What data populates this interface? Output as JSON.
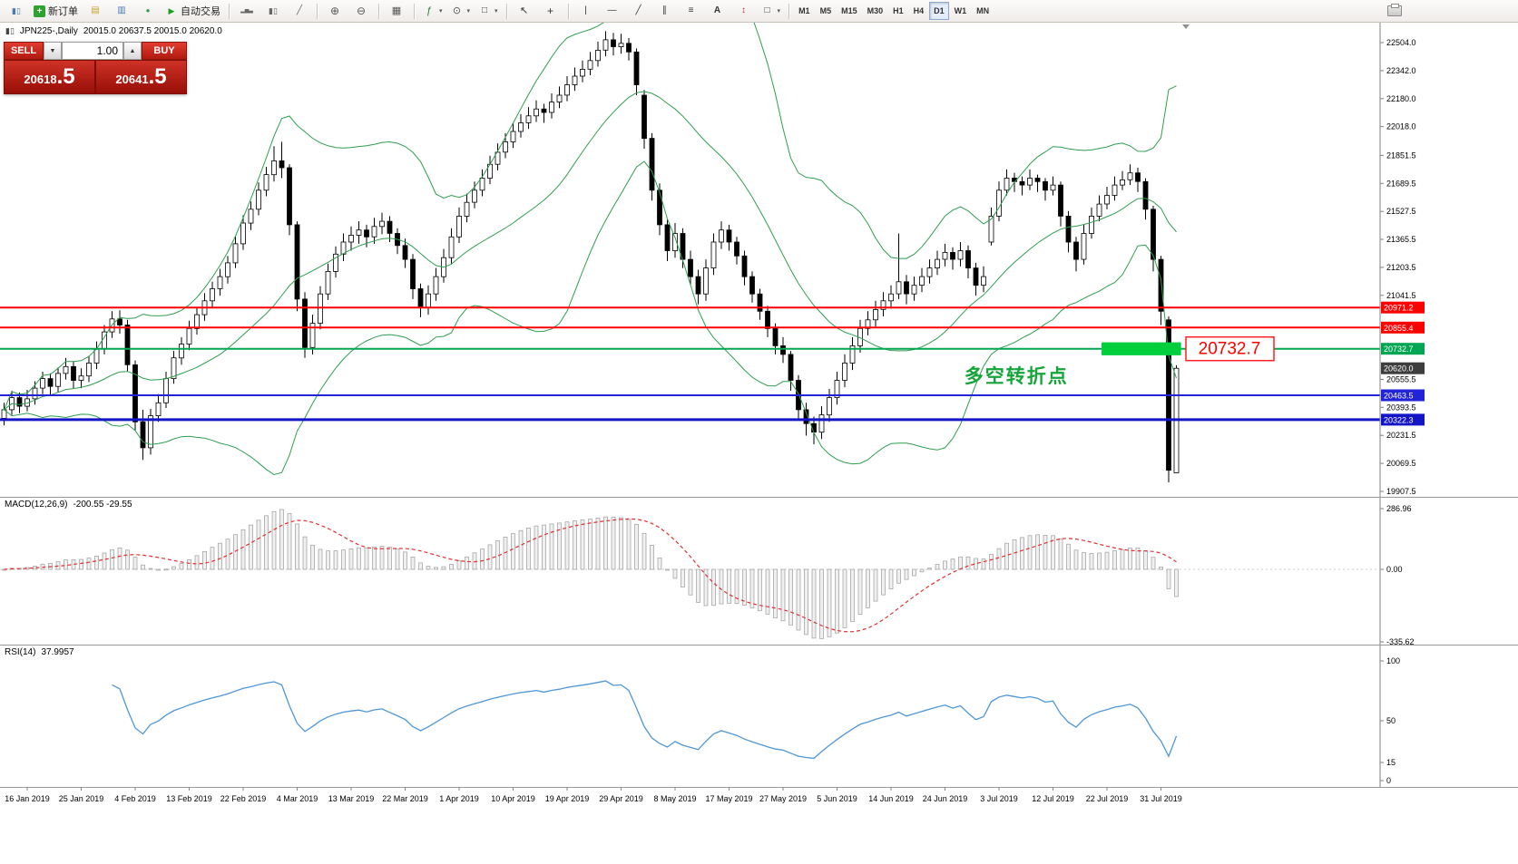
{
  "toolbar": {
    "groups": [
      {
        "items": [
          {
            "name": "chart-menu",
            "icon": "chart-mini"
          },
          {
            "name": "new-order",
            "icon": "order-plus",
            "label": "新订单"
          },
          {
            "name": "market-watch",
            "icon": "gold"
          },
          {
            "name": "data-window",
            "icon": "blue-win"
          },
          {
            "name": "navigator",
            "icon": "green-nav"
          },
          {
            "name": "auto-trading",
            "icon": "play",
            "label": "自动交易"
          }
        ]
      },
      {
        "items": [
          {
            "name": "bar-chart-type",
            "icon": "bars"
          },
          {
            "name": "candle-chart-type",
            "icon": "candles"
          },
          {
            "name": "line-chart-type",
            "icon": "linechart"
          }
        ]
      },
      {
        "items": [
          {
            "name": "zoom-in",
            "icon": "zoom-in"
          },
          {
            "name": "zoom-out",
            "icon": "zoom-out"
          }
        ]
      },
      {
        "items": [
          {
            "name": "tile-windows",
            "icon": "tile"
          }
        ]
      },
      {
        "items": [
          {
            "name": "indicators",
            "icon": "indicators",
            "dropdown": true
          },
          {
            "name": "periods",
            "icon": "clock",
            "dropdown": true
          },
          {
            "name": "templates",
            "icon": "shapes",
            "dropdown": true
          }
        ]
      },
      {
        "items": [
          {
            "name": "cursor-tool",
            "icon": "cursor"
          },
          {
            "name": "crosshair-tool",
            "icon": "crosshair"
          }
        ]
      },
      {
        "items": [
          {
            "name": "vertical-line-tool",
            "icon": "vline"
          },
          {
            "name": "horizontal-line-tool",
            "icon": "hline"
          },
          {
            "name": "trendline-tool",
            "icon": "trend"
          },
          {
            "name": "channel-tool",
            "icon": "channel"
          },
          {
            "name": "fibonacci-tool",
            "icon": "fibo"
          },
          {
            "name": "text-tool",
            "icon": "text"
          },
          {
            "name": "arrows-tool",
            "icon": "arrows"
          },
          {
            "name": "shapes-tool",
            "icon": "shapes",
            "dropdown": true
          }
        ]
      },
      {
        "timeframes": true,
        "items": [
          {
            "name": "tf-m1",
            "label": "M1"
          },
          {
            "name": "tf-m5",
            "label": "M5"
          },
          {
            "name": "tf-m15",
            "label": "M15"
          },
          {
            "name": "tf-m30",
            "label": "M30"
          },
          {
            "name": "tf-h1",
            "label": "H1"
          },
          {
            "name": "tf-h4",
            "label": "H4"
          },
          {
            "name": "tf-d1",
            "label": "D1",
            "active": true
          },
          {
            "name": "tf-w1",
            "label": "W1"
          },
          {
            "name": "tf-mn",
            "label": "MN"
          }
        ]
      },
      {
        "align": "right",
        "items": [
          {
            "name": "print",
            "icon": "printer"
          }
        ]
      }
    ]
  },
  "symbol_header": {
    "symbol": "JPN225-,Daily",
    "ohlc": "20015.0 20637.5 20015.0 20620.0"
  },
  "trade_panel": {
    "sell_label": "SELL",
    "buy_label": "BUY",
    "volume": "1.00",
    "sell_price_small": "20618",
    "sell_price_big": ".5",
    "buy_price_small": "20641",
    "buy_price_big": ".5"
  },
  "panes": {
    "macd": {
      "name": "MACD(12,26,9)",
      "values": "-200.55 -29.55",
      "axis": [
        "286.96",
        "0.00",
        "-335.62"
      ]
    },
    "rsi": {
      "name": "RSI(14)",
      "value": "37.9957",
      "axis": [
        "100",
        "50",
        "15",
        "0"
      ]
    }
  },
  "chart_data": {
    "type": "candlestick",
    "symbol": "JPN225-",
    "timeframe": "Daily",
    "ohlc_display": {
      "open": 20015.0,
      "high": 20637.5,
      "low": 20015.0,
      "close": 20620.0
    },
    "indicators": {
      "bollinger": {
        "period": 20,
        "deviation": 2,
        "color": "#2f9e4e"
      },
      "macd": {
        "fast": 12,
        "slow": 26,
        "signal": 9,
        "last_values": [
          -200.55,
          -29.55
        ],
        "hist_fill": "#f0f0f0",
        "hist_stroke": "#9c9c9c",
        "signal_color": "#e03030"
      },
      "rsi": {
        "period": 14,
        "last_value": 37.9957,
        "color": "#4f97d7"
      }
    },
    "price_axis_ticks": [
      "22504.0",
      "22342.0",
      "22180.0",
      "22018.0",
      "21851.5",
      "21689.5",
      "21527.5",
      "21365.5",
      "21203.5",
      "21041.5",
      "20555.5",
      "20393.5",
      "20231.5",
      "20069.5",
      "19907.5"
    ],
    "levels": [
      {
        "price": 20971.2,
        "label": "20971.2",
        "color": "#ff0000",
        "width": 2
      },
      {
        "price": 20855.4,
        "label": "20855.4",
        "color": "#ff0000",
        "width": 2
      },
      {
        "price": 20732.7,
        "label": "20732.7",
        "color": "#00a651",
        "width": 2
      },
      {
        "price": 20463.5,
        "label": "20463.5",
        "color": "#2222d8",
        "width": 2
      },
      {
        "price": 20322.3,
        "label": "20322.3",
        "color": "#1515c8",
        "width": 3
      }
    ],
    "current_price": {
      "price": 20620.0,
      "label": "20620.0",
      "tag_color": "#3d3d3d"
    },
    "highlight_rect": {
      "from_candle": 142.3,
      "to_candle": 152.6,
      "price_top": 20770,
      "price_bottom": 20695,
      "color": "#00ce3c"
    },
    "price_label": {
      "text": "20732.7",
      "price": 20732.7,
      "text_color": "#ff0000",
      "border_color": "#ff2020"
    },
    "annotation": {
      "text": "多空转折点",
      "x_candle": 124.5,
      "price": 20537,
      "color": "#16a53a"
    },
    "time_axis": {
      "labels": [
        "16 Jan 2019",
        "25 Jan 2019",
        "4 Feb 2019",
        "13 Feb 2019",
        "22 Feb 2019",
        "4 Mar 2019",
        "13 Mar 2019",
        "22 Mar 2019",
        "1 Apr 2019",
        "10 Apr 2019",
        "19 Apr 2019",
        "29 Apr 2019",
        "8 May 2019",
        "17 May 2019",
        "27 May 2019",
        "5 Jun 2019",
        "14 Jun 2019",
        "24 Jun 2019",
        "3 Jul 2019",
        "12 Jul 2019",
        "22 Jul 2019",
        "31 Jul 2019"
      ],
      "indices": [
        3,
        10,
        17,
        24,
        31,
        38,
        45,
        52,
        59,
        66,
        73,
        80,
        87,
        94,
        101,
        108,
        115,
        122,
        129,
        136,
        143,
        150
      ]
    },
    "candles": [
      [
        20330,
        20420,
        20290,
        20380
      ],
      [
        20380,
        20490,
        20350,
        20450
      ],
      [
        20450,
        20480,
        20360,
        20400
      ],
      [
        20400,
        20495,
        20370,
        20443
      ],
      [
        20443,
        20545,
        20410,
        20505
      ],
      [
        20505,
        20600,
        20470,
        20560
      ],
      [
        20560,
        20590,
        20465,
        20515
      ],
      [
        20515,
        20625,
        20480,
        20590
      ],
      [
        20590,
        20680,
        20555,
        20630
      ],
      [
        20630,
        20660,
        20500,
        20550
      ],
      [
        20550,
        20620,
        20505,
        20575
      ],
      [
        20575,
        20690,
        20540,
        20650
      ],
      [
        20650,
        20775,
        20615,
        20730
      ],
      [
        20730,
        20870,
        20700,
        20830
      ],
      [
        20830,
        20950,
        20795,
        20905
      ],
      [
        20905,
        20955,
        20820,
        20870
      ],
      [
        20870,
        20900,
        20600,
        20640
      ],
      [
        20640,
        20665,
        20260,
        20310
      ],
      [
        20310,
        20380,
        20090,
        20160
      ],
      [
        20160,
        20385,
        20120,
        20345
      ],
      [
        20345,
        20470,
        20310,
        20420
      ],
      [
        20420,
        20600,
        20390,
        20560
      ],
      [
        20560,
        20720,
        20530,
        20680
      ],
      [
        20680,
        20800,
        20640,
        20760
      ],
      [
        20760,
        20895,
        20725,
        20850
      ],
      [
        20850,
        20975,
        20815,
        20930
      ],
      [
        20930,
        21055,
        20895,
        21010
      ],
      [
        21010,
        21120,
        20970,
        21080
      ],
      [
        21080,
        21195,
        21040,
        21150
      ],
      [
        21150,
        21270,
        21110,
        21230
      ],
      [
        21230,
        21385,
        21200,
        21340
      ],
      [
        21340,
        21505,
        21305,
        21460
      ],
      [
        21460,
        21585,
        21420,
        21540
      ],
      [
        21540,
        21695,
        21505,
        21650
      ],
      [
        21650,
        21785,
        21615,
        21740
      ],
      [
        21740,
        21905,
        21700,
        21820
      ],
      [
        21820,
        21930,
        21720,
        21780
      ],
      [
        21780,
        21800,
        21390,
        21450
      ],
      [
        21450,
        21470,
        20950,
        21020
      ],
      [
        21020,
        21060,
        20680,
        20740
      ],
      [
        20740,
        20930,
        20700,
        20880
      ],
      [
        20880,
        21095,
        20845,
        21050
      ],
      [
        21050,
        21225,
        21015,
        21180
      ],
      [
        21180,
        21325,
        21145,
        21280
      ],
      [
        21280,
        21400,
        21240,
        21350
      ],
      [
        21350,
        21440,
        21300,
        21390
      ],
      [
        21390,
        21470,
        21340,
        21420
      ],
      [
        21420,
        21450,
        21320,
        21380
      ],
      [
        21380,
        21490,
        21340,
        21440
      ],
      [
        21440,
        21520,
        21395,
        21470
      ],
      [
        21470,
        21500,
        21350,
        21400
      ],
      [
        21400,
        21430,
        21280,
        21330
      ],
      [
        21330,
        21370,
        21200,
        21250
      ],
      [
        21250,
        21280,
        21020,
        21080
      ],
      [
        21080,
        21110,
        20915,
        20970
      ],
      [
        20970,
        21100,
        20930,
        21050
      ],
      [
        21050,
        21200,
        21010,
        21150
      ],
      [
        21150,
        21310,
        21115,
        21260
      ],
      [
        21260,
        21430,
        21225,
        21380
      ],
      [
        21380,
        21550,
        21345,
        21500
      ],
      [
        21500,
        21630,
        21465,
        21580
      ],
      [
        21580,
        21700,
        21545,
        21650
      ],
      [
        21650,
        21770,
        21615,
        21720
      ],
      [
        21720,
        21850,
        21685,
        21800
      ],
      [
        21800,
        21920,
        21765,
        21870
      ],
      [
        21870,
        21980,
        21835,
        21930
      ],
      [
        21930,
        22040,
        21895,
        21990
      ],
      [
        21990,
        22090,
        21955,
        22040
      ],
      [
        22040,
        22130,
        22005,
        22080
      ],
      [
        22080,
        22170,
        22045,
        22120
      ],
      [
        22120,
        22150,
        22040,
        22100
      ],
      [
        22100,
        22210,
        22065,
        22160
      ],
      [
        22160,
        22250,
        22125,
        22200
      ],
      [
        22200,
        22310,
        22165,
        22260
      ],
      [
        22260,
        22360,
        22225,
        22310
      ],
      [
        22310,
        22400,
        22275,
        22350
      ],
      [
        22350,
        22450,
        22315,
        22400
      ],
      [
        22400,
        22510,
        22365,
        22460
      ],
      [
        22460,
        22570,
        22425,
        22520
      ],
      [
        22520,
        22560,
        22430,
        22480
      ],
      [
        22480,
        22555,
        22440,
        22500
      ],
      [
        22500,
        22530,
        22400,
        22450
      ],
      [
        22450,
        22470,
        22200,
        22260
      ],
      [
        22200,
        22230,
        21890,
        21950
      ],
      [
        21950,
        21980,
        21590,
        21650
      ],
      [
        21650,
        21690,
        21390,
        21450
      ],
      [
        21450,
        21480,
        21240,
        21300
      ],
      [
        21300,
        21460,
        21260,
        21400
      ],
      [
        21400,
        21430,
        21200,
        21250
      ],
      [
        21250,
        21300,
        21100,
        21150
      ],
      [
        21150,
        21190,
        20990,
        21050
      ],
      [
        21050,
        21250,
        21010,
        21200
      ],
      [
        21200,
        21400,
        21160,
        21350
      ],
      [
        21350,
        21470,
        21310,
        21420
      ],
      [
        21420,
        21450,
        21300,
        21350
      ],
      [
        21350,
        21380,
        21220,
        21270
      ],
      [
        21270,
        21300,
        21100,
        21150
      ],
      [
        21150,
        21180,
        21000,
        21050
      ],
      [
        21050,
        21080,
        20900,
        20950
      ],
      [
        20950,
        20980,
        20800,
        20850
      ],
      [
        20850,
        20880,
        20700,
        20750
      ],
      [
        20750,
        20800,
        20650,
        20700
      ],
      [
        20700,
        20720,
        20490,
        20550
      ],
      [
        20550,
        20580,
        20320,
        20380
      ],
      [
        20380,
        20420,
        20230,
        20300
      ],
      [
        20300,
        20340,
        20180,
        20250
      ],
      [
        20250,
        20400,
        20210,
        20350
      ],
      [
        20350,
        20500,
        20310,
        20450
      ],
      [
        20450,
        20600,
        20410,
        20550
      ],
      [
        20550,
        20700,
        20510,
        20650
      ],
      [
        20650,
        20800,
        20610,
        20750
      ],
      [
        20750,
        20900,
        20710,
        20850
      ],
      [
        20850,
        20950,
        20810,
        20900
      ],
      [
        20900,
        21010,
        20860,
        20960
      ],
      [
        20960,
        21060,
        20920,
        21010
      ],
      [
        21010,
        21100,
        20965,
        21050
      ],
      [
        21050,
        21400,
        21020,
        21120
      ],
      [
        21120,
        21160,
        20990,
        21050
      ],
      [
        21050,
        21150,
        21010,
        21100
      ],
      [
        21100,
        21200,
        21060,
        21150
      ],
      [
        21150,
        21250,
        21110,
        21200
      ],
      [
        21200,
        21300,
        21160,
        21250
      ],
      [
        21250,
        21340,
        21210,
        21290
      ],
      [
        21290,
        21320,
        21190,
        21250
      ],
      [
        21250,
        21350,
        21210,
        21300
      ],
      [
        21300,
        21330,
        21140,
        21200
      ],
      [
        21200,
        21230,
        21040,
        21100
      ],
      [
        21100,
        21210,
        21060,
        21150
      ],
      [
        21350,
        21550,
        21330,
        21500
      ],
      [
        21500,
        21700,
        21470,
        21650
      ],
      [
        21650,
        21770,
        21620,
        21720
      ],
      [
        21720,
        21750,
        21640,
        21700
      ],
      [
        21700,
        21730,
        21620,
        21680
      ],
      [
        21680,
        21770,
        21650,
        21720
      ],
      [
        21720,
        21740,
        21640,
        21700
      ],
      [
        21700,
        21720,
        21590,
        21650
      ],
      [
        21650,
        21730,
        21620,
        21680
      ],
      [
        21680,
        21700,
        21440,
        21500
      ],
      [
        21500,
        21530,
        21290,
        21350
      ],
      [
        21350,
        21380,
        21180,
        21250
      ],
      [
        21250,
        21450,
        21220,
        21400
      ],
      [
        21400,
        21550,
        21370,
        21500
      ],
      [
        21500,
        21620,
        21470,
        21570
      ],
      [
        21570,
        21670,
        21540,
        21620
      ],
      [
        21620,
        21730,
        21590,
        21680
      ],
      [
        21680,
        21760,
        21650,
        21710
      ],
      [
        21710,
        21800,
        21680,
        21750
      ],
      [
        21750,
        21780,
        21640,
        21700
      ],
      [
        21700,
        21720,
        21480,
        21540
      ],
      [
        21540,
        21560,
        21180,
        21250
      ],
      [
        21250,
        21270,
        20870,
        20950
      ],
      [
        20900,
        20920,
        19960,
        20030
      ],
      [
        20015,
        20637.5,
        20015,
        20620
      ]
    ]
  },
  "colors": {
    "bull_fill": "#ffffff",
    "bear_fill": "#000000",
    "outline": "#000000",
    "axis_text": "#000000",
    "separator": "#9a9a9a"
  }
}
